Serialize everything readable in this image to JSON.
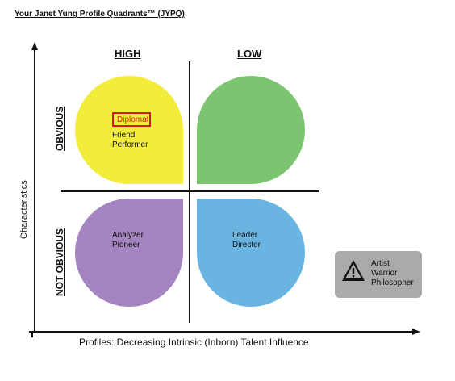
{
  "title": "Your Janet Yung Profile Quadrants™ (JYPQ)",
  "columns": {
    "high": "HIGH",
    "low": "LOW"
  },
  "rows": {
    "obvious": "OBVIOUS",
    "not_obvious": "NOT OBVIOUS"
  },
  "axes": {
    "y_label": "Characteristics",
    "x_label": "Profiles: Decreasing Intrinsic (Inborn) Talent Influence"
  },
  "quadrants": {
    "top_left": {
      "color": "#f2ec3a",
      "highlighted": "Diplomat",
      "lines": [
        "Friend",
        "Performer"
      ]
    },
    "top_right": {
      "color": "#7cc470",
      "lines": []
    },
    "bottom_left": {
      "color": "#a585c1",
      "lines": [
        "Analyzer",
        "Pioneer"
      ]
    },
    "bottom_right": {
      "color": "#6ab4e2",
      "lines": [
        "Leader",
        "Director"
      ]
    }
  },
  "warning_box": {
    "icon": "warning-triangle-icon",
    "color": "#aaaaaa",
    "lines": [
      "Artist",
      "Warrior",
      "Philosopher"
    ]
  }
}
